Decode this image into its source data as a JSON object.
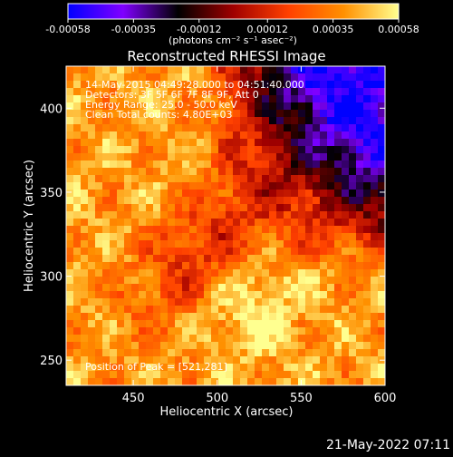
{
  "chart_data": {
    "type": "heatmap",
    "title": "Reconstructed RHESSI Image",
    "xlabel": "Heliocentric X (arcsec)",
    "ylabel": "Heliocentric Y (arcsec)",
    "xlim": [
      410,
      600
    ],
    "ylim": [
      235,
      425
    ],
    "x_ticks": [
      450,
      500,
      550,
      600
    ],
    "y_ticks": [
      250,
      300,
      350,
      400
    ],
    "x_tick_labels": [
      "450",
      "500",
      "550",
      "600"
    ],
    "y_tick_labels": [
      "250",
      "300",
      "350",
      "400"
    ],
    "colorbar": {
      "range": [
        -0.00058,
        0.00058
      ],
      "tick_values": [
        -0.00058,
        -0.00035,
        -0.00012,
        0.00012,
        0.00035,
        0.00058
      ],
      "tick_labels": [
        "-0.00058",
        "-0.00035",
        "-0.00012",
        "0.00012",
        "0.00035",
        "0.00058"
      ],
      "units": "(photons cm⁻² s⁻¹ asec⁻²)",
      "stops": [
        "#0000ff",
        "#8000ff",
        "#000000",
        "#a00000",
        "#ff4000",
        "#ff9000",
        "#ffff90"
      ]
    },
    "annotations": [
      "14-May-2015 04:49:28.000 to 04:51:40.000",
      "Detectors: 3F 5F 6F 7F 8F 9F, Att 0",
      "Energy Range: 25.0 - 50.0 keV",
      "Clean     Total counts: 4.80E+03",
      "Position of Peak = [521,281]"
    ],
    "regions": [
      {
        "name": "negative-flux-region",
        "x_range": [
          505,
          600
        ],
        "y_range": [
          310,
          425
        ],
        "color": "#8000ff"
      },
      {
        "name": "positive-flux-region-west",
        "x_range": [
          410,
          500
        ],
        "y_range": [
          235,
          425
        ],
        "color": "#ff6a00"
      },
      {
        "name": "positive-flux-region-south",
        "x_range": [
          490,
          600
        ],
        "y_range": [
          235,
          300
        ],
        "color": "#ffb030"
      }
    ],
    "peak": {
      "x": 521,
      "y": 281
    }
  },
  "footer": {
    "timestamp": "21-May-2022 07:11"
  }
}
